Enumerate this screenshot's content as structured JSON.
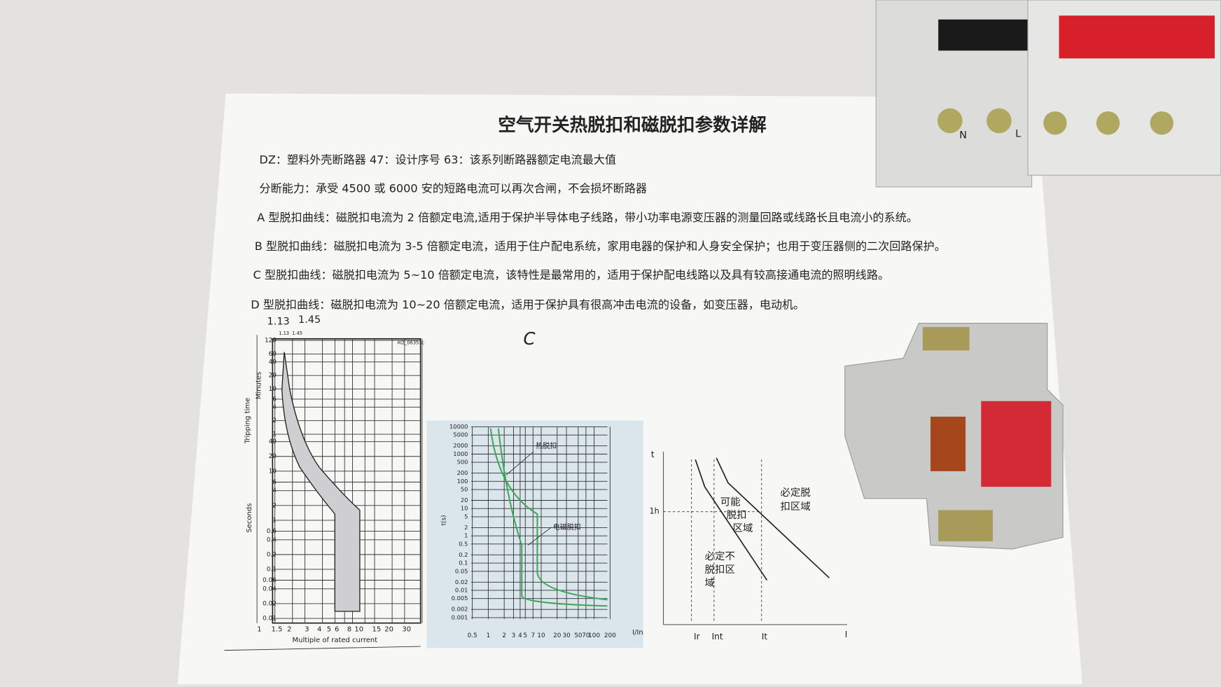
{
  "title": "空气开关热脱扣和磁脱扣参数详解",
  "paragraphs": [
    "DZ：塑料外壳断路器 47：设计序号 63：该系列断路器额定电流最大值",
    "分断能力：承受 4500 或 6000 安的短路电流可以再次合闸，不会损坏断路器",
    "A 型脱扣曲线：磁脱扣电流为 2 倍额定电流,适用于保护半导体电子线路，带小功率电源变压器的测量回路或线路长且电流小的系统。",
    "B 型脱扣曲线：磁脱扣电流为 3-5 倍额定电流，适用于住户配电系统，家用电器的保护和人身安全保护；也用于变压器侧的二次回路保护。",
    "C 型脱扣曲线：磁脱扣电流为 5~10 倍额定电流，该特性是最常用的，适用于保护配电线路以及具有较高接通电流的照明线路。",
    "D 型脱扣曲线：磁脱扣电流为 10~20 倍额定电流，适用于保护具有很高冲击电流的设备，如变压器，电动机。"
  ],
  "handwritten_note": "C",
  "breaker_labels": [
    "N",
    "L"
  ],
  "figures": {
    "left": {
      "handwritten": [
        "1.13",
        "1.45"
      ],
      "top_labels": [
        "1.13",
        "1.45"
      ],
      "code": "AI2_06353c",
      "y_label": "Tripping time",
      "minutes": "Minutes",
      "seconds": "Seconds",
      "minute_ticks": [
        120,
        60,
        40,
        20,
        10,
        6,
        4,
        2,
        1
      ],
      "second_ticks": [
        40,
        20,
        10,
        6,
        4,
        2,
        1,
        0.6,
        0.4,
        0.2,
        0.1,
        0.06,
        0.04,
        0.02,
        0.01
      ],
      "xticks": [
        1,
        1.5,
        2,
        3,
        4,
        5,
        6,
        8,
        10,
        15,
        20,
        30
      ],
      "x_label": "Multiple of rated current"
    },
    "middle": {
      "y_label": "t(s)",
      "yticks": [
        10000,
        5000,
        2000,
        1000,
        500,
        200,
        100,
        50,
        20,
        10,
        5,
        2,
        1,
        0.5,
        0.2,
        0.1,
        0.05,
        0.02,
        0.01,
        0.005,
        0.002,
        0.001
      ],
      "xticks": [
        0.5,
        1,
        2,
        3,
        4,
        5,
        7,
        10,
        20,
        30,
        50,
        70,
        100,
        200
      ],
      "x_label": "I/In",
      "thermal": "热脱扣",
      "magnetic": "电磁脱扣"
    },
    "right": {
      "t": "t",
      "h": "1h",
      "ir": "Ir",
      "int": "Int",
      "it": "It",
      "i": "I",
      "possible": [
        "可能",
        "脱扣",
        "区域"
      ],
      "sure": [
        "必定脱",
        "扣区域"
      ],
      "never": [
        "必定不",
        "脱扣区",
        "域"
      ]
    }
  }
}
